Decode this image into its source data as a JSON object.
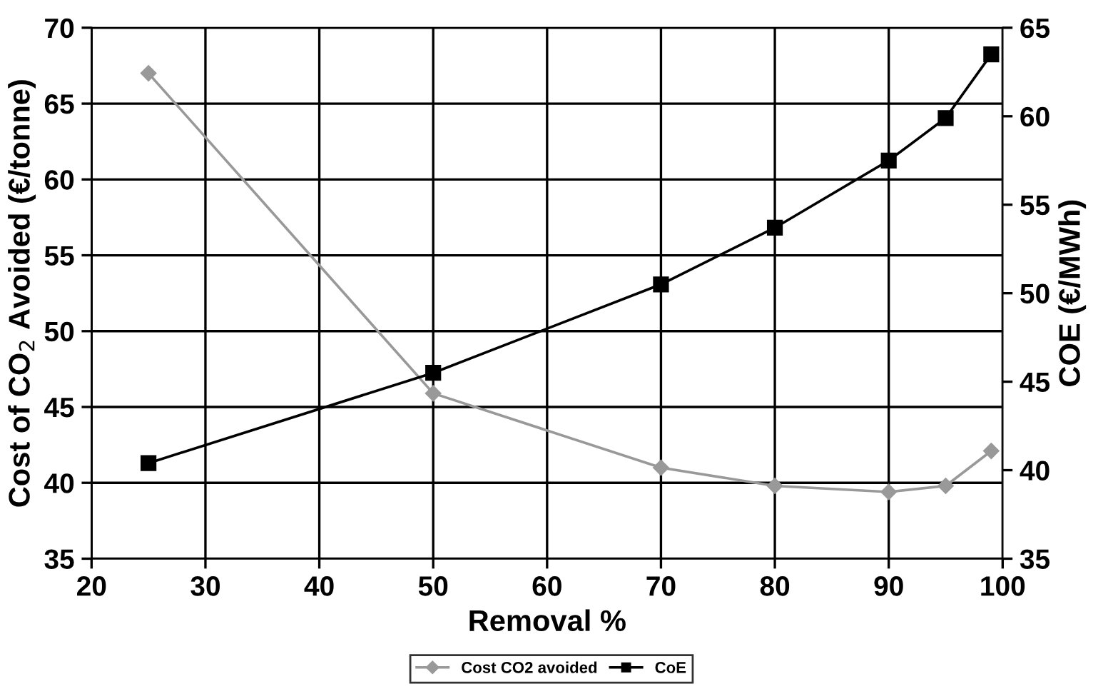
{
  "chart_data": {
    "type": "line",
    "x": [
      25,
      50,
      70,
      80,
      90,
      95,
      99
    ],
    "xlabel": "Removal %",
    "ylabel": "Cost of CO$_{2}$ Avoided (€/tonne)",
    "y2label": "COE (€/MWh)",
    "series": [
      {
        "name": "Cost CO2 avoided",
        "color": "#999999",
        "marker": "diamond",
        "values": [
          67.0,
          45.9,
          41.0,
          39.8,
          39.4,
          39.8,
          42.1
        ]
      },
      {
        "name": "CoE",
        "color": "#000000",
        "marker": "square",
        "axis": "y2",
        "values": [
          40.4,
          45.5,
          50.5,
          53.7,
          57.5,
          59.9,
          63.5
        ]
      }
    ],
    "xlim": [
      20,
      100
    ],
    "xticks": [
      20,
      30,
      40,
      50,
      60,
      70,
      80,
      90,
      100
    ],
    "ylim": [
      35,
      70
    ],
    "yticks": [
      35,
      40,
      45,
      50,
      55,
      60,
      65,
      70
    ],
    "y2lim": [
      35,
      65
    ],
    "y2ticks": [
      35,
      40,
      45,
      50,
      55,
      60,
      65
    ],
    "grid": true,
    "legend": "bottom",
    "line_style": "solid"
  }
}
